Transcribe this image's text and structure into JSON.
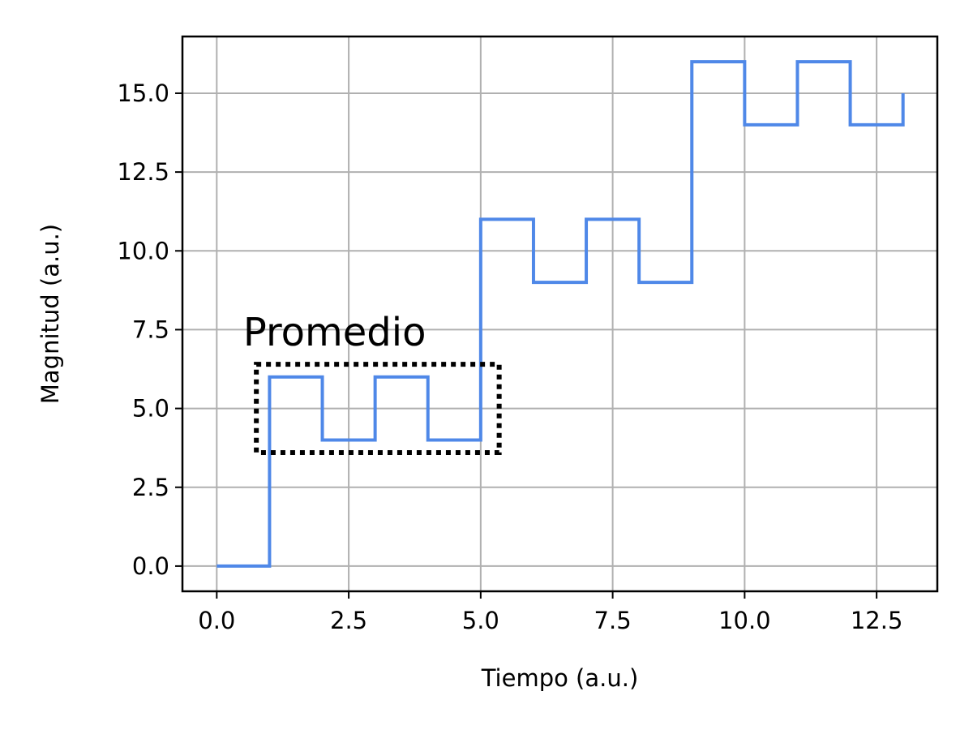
{
  "chart_data": {
    "type": "line",
    "step": "post",
    "xlabel": "Tiempo (a.u.)",
    "ylabel": "Magnitud (a.u.)",
    "xlim": [
      -0.65,
      13.65
    ],
    "ylim": [
      -0.8,
      16.8
    ],
    "xticks": [
      0.0,
      2.5,
      5.0,
      7.5,
      10.0,
      12.5
    ],
    "xtick_labels": [
      "0.0",
      "2.5",
      "5.0",
      "7.5",
      "10.0",
      "12.5"
    ],
    "yticks": [
      0.0,
      2.5,
      5.0,
      7.5,
      10.0,
      12.5,
      15.0
    ],
    "ytick_labels": [
      "0.0",
      "2.5",
      "5.0",
      "7.5",
      "10.0",
      "12.5",
      "15.0"
    ],
    "grid": true,
    "series": [
      {
        "color": "#4f88e8",
        "x": [
          0,
          1,
          2,
          3,
          4,
          5,
          6,
          7,
          8,
          9,
          10,
          11,
          12,
          13
        ],
        "y": [
          0,
          6,
          4,
          6,
          4,
          11,
          9,
          11,
          9,
          16,
          14,
          16,
          14,
          15
        ]
      }
    ],
    "annotations": [
      {
        "text": "Promedio",
        "text_x": 0.5,
        "text_y": 7.0,
        "box": {
          "x0": 0.75,
          "x1": 5.35,
          "y0": 3.6,
          "y1": 6.4,
          "style": "dotted",
          "color": "#000000"
        }
      }
    ]
  }
}
